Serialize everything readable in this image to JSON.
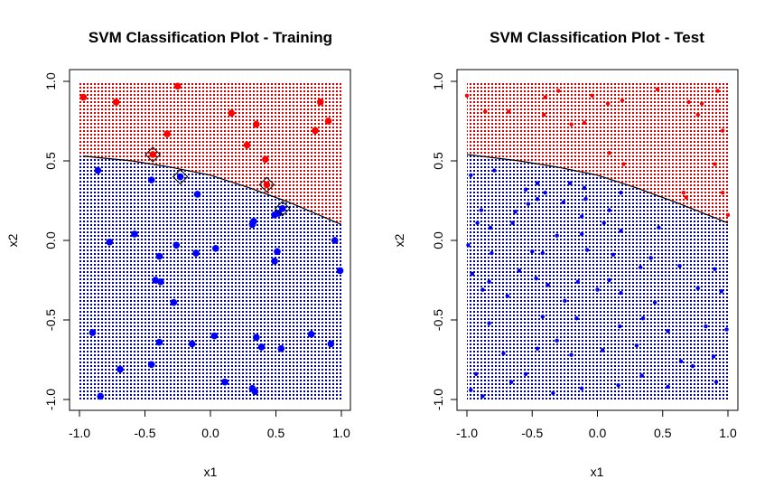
{
  "chart_data": [
    {
      "type": "scatter",
      "title": "SVM Classification Plot - Training",
      "xlabel": "x1",
      "ylabel": "x2",
      "xlim": [
        -1.0,
        1.0
      ],
      "ylim": [
        -1.0,
        1.0
      ],
      "x_ticks": [
        "-1.0",
        "-0.5",
        "0.0",
        "0.5",
        "1.0"
      ],
      "y_ticks": [
        "-1.0",
        "-0.5",
        "0.0",
        "0.5",
        "1.0"
      ],
      "grid": false,
      "background": "dotted class-region grid (red above boundary, blue below)",
      "colors": {
        "red_class": "#ff0000",
        "blue_class": "#0000ff",
        "red_region": "#cc0000",
        "blue_region": "#00008b",
        "boundary": "#000000"
      },
      "decision_boundary": {
        "x": [
          -0.97,
          -0.6,
          -0.3,
          0.0,
          0.3,
          0.6,
          1.0
        ],
        "y": [
          0.53,
          0.5,
          0.46,
          0.41,
          0.33,
          0.24,
          0.1
        ]
      },
      "series": [
        {
          "color": "#ff0000",
          "points": [
            [
              -0.97,
              0.9
            ],
            [
              -0.72,
              0.87
            ],
            [
              -0.25,
              0.97
            ],
            [
              -0.33,
              0.67
            ],
            [
              0.16,
              0.8
            ],
            [
              0.35,
              0.73
            ],
            [
              0.28,
              0.6
            ],
            [
              0.42,
              0.51
            ],
            [
              0.8,
              0.69
            ],
            [
              0.84,
              0.87
            ],
            [
              0.9,
              0.75
            ],
            [
              -0.44,
              0.54
            ],
            [
              0.43,
              0.35
            ]
          ]
        },
        {
          "color": "#0000ff",
          "points": [
            [
              -0.86,
              0.44
            ],
            [
              -0.45,
              0.38
            ],
            [
              -0.23,
              0.4
            ],
            [
              -0.1,
              0.29
            ],
            [
              0.55,
              0.2
            ],
            [
              0.49,
              0.16
            ],
            [
              0.52,
              0.17
            ],
            [
              0.32,
              0.1
            ],
            [
              0.33,
              0.12
            ],
            [
              -0.77,
              -0.01
            ],
            [
              -0.58,
              0.04
            ],
            [
              -0.26,
              -0.03
            ],
            [
              0.04,
              -0.05
            ],
            [
              -0.11,
              -0.08
            ],
            [
              -0.39,
              -0.1
            ],
            [
              0.51,
              -0.07
            ],
            [
              0.49,
              -0.13
            ],
            [
              0.95,
              0.0
            ],
            [
              0.99,
              -0.19
            ],
            [
              -0.42,
              -0.25
            ],
            [
              -0.38,
              -0.26
            ],
            [
              -0.28,
              -0.39
            ],
            [
              -0.9,
              -0.58
            ],
            [
              -0.39,
              -0.64
            ],
            [
              -0.14,
              -0.65
            ],
            [
              0.03,
              -0.6
            ],
            [
              0.35,
              -0.61
            ],
            [
              0.39,
              -0.67
            ],
            [
              0.54,
              -0.68
            ],
            [
              0.77,
              -0.59
            ],
            [
              0.92,
              -0.65
            ],
            [
              -0.69,
              -0.81
            ],
            [
              -0.45,
              -0.78
            ],
            [
              0.11,
              -0.89
            ],
            [
              0.32,
              -0.93
            ],
            [
              0.34,
              -0.95
            ],
            [
              -0.84,
              -0.98
            ]
          ]
        }
      ],
      "support_vectors": [
        [
          -0.44,
          0.54
        ],
        [
          0.43,
          0.35
        ],
        [
          -0.23,
          0.4
        ],
        [
          0.55,
          0.2
        ]
      ]
    },
    {
      "type": "scatter",
      "title": "SVM Classification Plot - Test",
      "xlabel": "x1",
      "ylabel": "x2",
      "xlim": [
        -1.0,
        1.0
      ],
      "ylim": [
        -1.0,
        1.0
      ],
      "x_ticks": [
        "-1.0",
        "-0.5",
        "0.0",
        "0.5",
        "1.0"
      ],
      "y_ticks": [
        "-1.0",
        "-0.5",
        "0.0",
        "0.5",
        "1.0"
      ],
      "grid": false,
      "background": "dotted class-region grid (red above boundary, blue below)",
      "colors": {
        "red_class": "#ff0000",
        "blue_class": "#0000ff",
        "red_region": "#cc0000",
        "blue_region": "#00008b",
        "boundary": "#000000"
      },
      "decision_boundary": {
        "x": [
          -1.0,
          -0.6,
          -0.3,
          0.0,
          0.3,
          0.6,
          1.0
        ],
        "y": [
          0.54,
          0.5,
          0.46,
          0.41,
          0.33,
          0.24,
          0.11
        ]
      },
      "series": [
        {
          "color": "#ff0000",
          "points": [
            [
              -1.0,
              0.91
            ],
            [
              -0.68,
              0.81
            ],
            [
              -0.86,
              0.81
            ],
            [
              -0.4,
              0.9
            ],
            [
              -0.3,
              0.94
            ],
            [
              -0.04,
              0.91
            ],
            [
              0.08,
              0.86
            ],
            [
              0.19,
              0.88
            ],
            [
              0.46,
              0.95
            ],
            [
              0.7,
              0.87
            ],
            [
              0.8,
              0.86
            ],
            [
              0.92,
              0.94
            ],
            [
              -0.41,
              0.79
            ],
            [
              -0.2,
              0.73
            ],
            [
              -0.1,
              0.74
            ],
            [
              0.77,
              0.79
            ],
            [
              0.96,
              0.69
            ],
            [
              0.09,
              0.55
            ],
            [
              0.2,
              0.48
            ],
            [
              0.9,
              0.48
            ],
            [
              0.66,
              0.3
            ],
            [
              0.68,
              0.27
            ],
            [
              0.96,
              0.3
            ],
            [
              1.0,
              0.16
            ]
          ]
        },
        {
          "color": "#0000ff",
          "points": [
            [
              -0.97,
              0.41
            ],
            [
              -0.79,
              0.44
            ],
            [
              -0.55,
              0.32
            ],
            [
              -0.46,
              0.36
            ],
            [
              -0.4,
              0.3
            ],
            [
              -0.46,
              0.26
            ],
            [
              -0.21,
              0.36
            ],
            [
              -0.1,
              0.33
            ],
            [
              -0.09,
              0.26
            ],
            [
              0.18,
              0.3
            ],
            [
              -0.89,
              0.19
            ],
            [
              -0.92,
              0.11
            ],
            [
              -0.63,
              0.18
            ],
            [
              -0.53,
              0.23
            ],
            [
              -0.26,
              0.24
            ],
            [
              -0.12,
              0.15
            ],
            [
              0.09,
              0.19
            ],
            [
              -0.82,
              0.08
            ],
            [
              -0.65,
              0.11
            ],
            [
              -0.31,
              0.03
            ],
            [
              -0.12,
              0.04
            ],
            [
              0.05,
              0.11
            ],
            [
              0.18,
              0.06
            ],
            [
              0.47,
              0.08
            ],
            [
              -0.99,
              -0.03
            ],
            [
              -0.81,
              -0.08
            ],
            [
              -0.5,
              -0.07
            ],
            [
              -0.42,
              -0.08
            ],
            [
              -0.08,
              -0.06
            ],
            [
              0.12,
              -0.09
            ],
            [
              0.41,
              -0.11
            ],
            [
              -0.96,
              -0.21
            ],
            [
              -0.83,
              -0.26
            ],
            [
              -0.6,
              -0.19
            ],
            [
              -0.47,
              -0.24
            ],
            [
              -0.38,
              -0.28
            ],
            [
              -0.15,
              -0.26
            ],
            [
              0.09,
              -0.25
            ],
            [
              0.33,
              -0.17
            ],
            [
              0.63,
              -0.16
            ],
            [
              0.9,
              -0.18
            ],
            [
              -0.88,
              -0.31
            ],
            [
              -0.69,
              -0.35
            ],
            [
              -0.25,
              -0.38
            ],
            [
              0.0,
              -0.31
            ],
            [
              0.18,
              -0.33
            ],
            [
              0.44,
              -0.39
            ],
            [
              0.77,
              -0.3
            ],
            [
              0.95,
              -0.32
            ],
            [
              -0.83,
              -0.52
            ],
            [
              -0.42,
              -0.48
            ],
            [
              -0.16,
              -0.49
            ],
            [
              0.17,
              -0.54
            ],
            [
              0.35,
              -0.49
            ],
            [
              0.54,
              -0.57
            ],
            [
              0.83,
              -0.54
            ],
            [
              -0.93,
              -0.84
            ],
            [
              -0.72,
              -0.71
            ],
            [
              -0.46,
              -0.68
            ],
            [
              -0.31,
              -0.63
            ],
            [
              -0.2,
              -0.72
            ],
            [
              0.04,
              -0.69
            ],
            [
              0.3,
              -0.66
            ],
            [
              0.64,
              -0.76
            ],
            [
              0.89,
              -0.73
            ],
            [
              -0.97,
              -0.94
            ],
            [
              -0.66,
              -0.89
            ],
            [
              -0.55,
              -0.84
            ],
            [
              -0.34,
              -0.96
            ],
            [
              -0.12,
              -0.93
            ],
            [
              0.16,
              -0.91
            ],
            [
              0.34,
              -0.85
            ],
            [
              0.54,
              -0.92
            ],
            [
              0.73,
              -0.79
            ],
            [
              0.91,
              -0.89
            ],
            [
              -0.88,
              -0.98
            ],
            [
              0.99,
              -0.56
            ]
          ]
        }
      ]
    }
  ]
}
